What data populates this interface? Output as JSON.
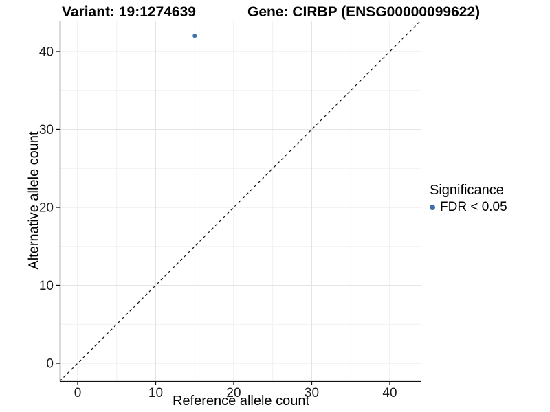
{
  "titles": {
    "variant": "Variant: 19:1274639",
    "gene": "Gene: CIRBP (ENSG00000099622)"
  },
  "axes": {
    "x": {
      "label": "Reference allele count"
    },
    "y": {
      "label": "Alternative allele count"
    }
  },
  "legend": {
    "title": "Significance",
    "items": [
      {
        "label": "FDR < 0.05",
        "color": "#3E6FA6"
      }
    ]
  },
  "colors": {
    "background": "#ffffff",
    "title_text": "#000000",
    "axis_text": "#1a1a1a",
    "axis_line": "#111111",
    "grid_major": "#e4e4e4",
    "grid_minor": "#f1f1f1",
    "point": "#3E6FA6",
    "dashed_line": "#111111"
  },
  "chart_data": {
    "type": "scatter",
    "title": "Variant: 19:1274639 — Gene: CIRBP (ENSG00000099622)",
    "xlabel": "Reference allele count",
    "ylabel": "Alternative allele count",
    "xlim": [
      -2.2,
      44.2
    ],
    "ylim": [
      -2.3,
      44.1
    ],
    "x_ticks": [
      0,
      10,
      20,
      30,
      40
    ],
    "y_ticks": [
      0,
      10,
      20,
      30,
      40
    ],
    "grid": {
      "major": [
        0,
        10,
        20,
        30,
        40
      ],
      "minor": [
        5,
        15,
        25,
        35
      ]
    },
    "series": [
      {
        "name": "FDR < 0.05",
        "color": "#3E6FA6",
        "points": [
          {
            "x": 15,
            "y": 42
          }
        ]
      }
    ],
    "reference_line": {
      "type": "identity",
      "style": "dashed",
      "color": "#111111"
    },
    "legend_position": "right",
    "legend_title": "Significance"
  }
}
